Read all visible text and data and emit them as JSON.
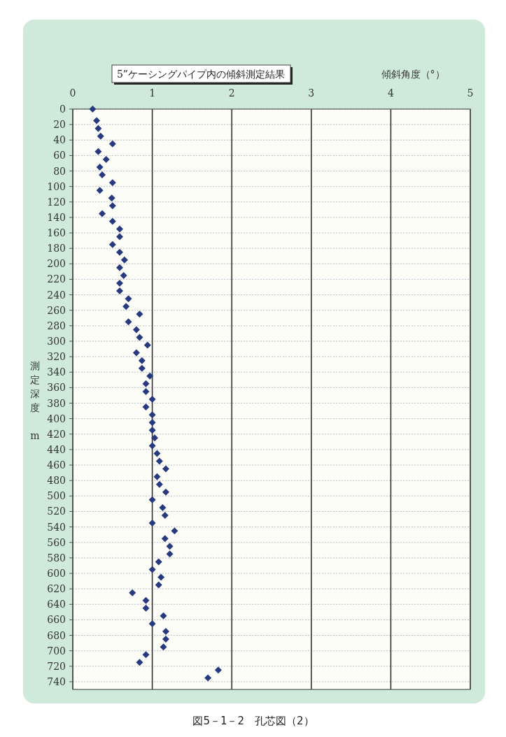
{
  "chart_data": {
    "type": "scatter",
    "title": "5”ケーシングパイプ内の傾斜測定結果",
    "xlabel": "傾斜角度（°）",
    "ylabel": "測定深度　m",
    "annotations": [
      "図5－1－2　孔芯図（2）"
    ],
    "xlim": [
      0,
      5
    ],
    "xticks": [
      0,
      1,
      2,
      3,
      4,
      5
    ],
    "ylim": [
      750,
      0
    ],
    "yticks": [
      0,
      20,
      40,
      60,
      80,
      100,
      120,
      140,
      160,
      180,
      200,
      220,
      240,
      260,
      280,
      300,
      320,
      340,
      360,
      380,
      400,
      420,
      440,
      460,
      480,
      500,
      520,
      540,
      560,
      580,
      600,
      620,
      640,
      660,
      680,
      700,
      720,
      740
    ],
    "grid": true,
    "marker": "diamond",
    "series": [
      {
        "color": "#283a7f",
        "x": [
          0.25,
          0.3,
          0.32,
          0.35,
          0.5,
          0.32,
          0.42,
          0.34,
          0.37,
          0.5,
          0.34,
          0.49,
          0.5,
          0.37,
          0.5,
          0.59,
          0.59,
          0.5,
          0.59,
          0.65,
          0.59,
          0.64,
          0.59,
          0.59,
          0.7,
          0.67,
          0.84,
          0.7,
          0.8,
          0.84,
          0.94,
          0.8,
          0.87,
          0.87,
          0.97,
          0.92,
          0.92,
          1.0,
          0.92,
          1.0,
          1.0,
          1.0,
          1.03,
          1.0,
          1.06,
          1.09,
          1.17,
          1.06,
          1.09,
          1.17,
          1.0,
          1.13,
          1.16,
          1.0,
          1.28,
          1.16,
          1.22,
          1.22,
          1.08,
          1.0,
          1.11,
          1.08,
          0.75,
          0.92,
          0.92,
          1.14,
          1.0,
          1.17,
          1.17,
          1.14,
          0.92,
          0.84,
          1.83,
          1.7
        ],
        "values": [
          0,
          15,
          25,
          35,
          45,
          55,
          65,
          75,
          85,
          95,
          105,
          115,
          125,
          135,
          145,
          155,
          165,
          175,
          185,
          195,
          205,
          215,
          225,
          235,
          245,
          255,
          265,
          275,
          285,
          295,
          305,
          315,
          325,
          335,
          345,
          355,
          365,
          375,
          385,
          395,
          405,
          415,
          425,
          435,
          445,
          455,
          465,
          475,
          485,
          495,
          505,
          515,
          525,
          535,
          545,
          555,
          565,
          575,
          585,
          595,
          605,
          615,
          625,
          635,
          645,
          655,
          665,
          675,
          685,
          695,
          705,
          715,
          725,
          735
        ]
      }
    ]
  }
}
